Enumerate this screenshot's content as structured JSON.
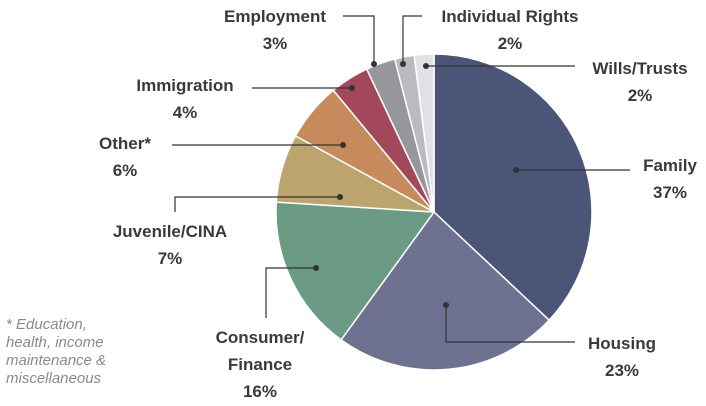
{
  "chart_data": {
    "type": "pie",
    "categories": [
      "Family",
      "Housing",
      "Consumer/\nFinance",
      "Juvenile/CINA",
      "Other*",
      "Immigration",
      "Employment",
      "Individual Rights",
      "Wills/Trusts"
    ],
    "values": [
      37,
      23,
      16,
      7,
      6,
      4,
      3,
      2,
      2
    ],
    "value_labels": [
      "37%",
      "23%",
      "16%",
      "7%",
      "6%",
      "4%",
      "3%",
      "2%",
      "2%"
    ],
    "colors": [
      "#4a5577",
      "#6e7290",
      "#6b9a85",
      "#bca56d",
      "#c68a5c",
      "#a3485a",
      "#97979b",
      "#b9bbc0",
      "#e0e1e4"
    ],
    "footnote": "* Education,\n  health, income\n  maintenance &\n  miscellaneous"
  }
}
